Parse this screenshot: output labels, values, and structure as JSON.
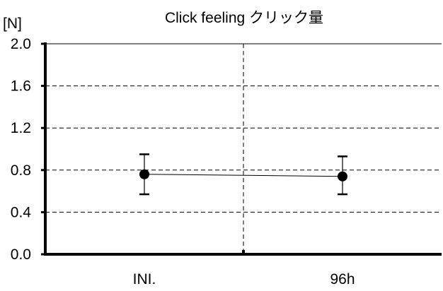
{
  "chart_data": {
    "type": "scatter",
    "title": "Click feeling クリック量",
    "unit_label": "[N]",
    "xlabel": "",
    "ylabel": "",
    "categories": [
      "INI.",
      "96h"
    ],
    "ylim": [
      0.0,
      2.0
    ],
    "y_ticks": [
      "0.0",
      "0.4",
      "0.8",
      "1.2",
      "1.6",
      "2.0"
    ],
    "series": [
      {
        "values": [
          0.76,
          0.74
        ],
        "error_low": [
          0.57,
          0.57
        ],
        "error_high": [
          0.95,
          0.93
        ]
      }
    ],
    "grid": true,
    "legend": "none"
  }
}
